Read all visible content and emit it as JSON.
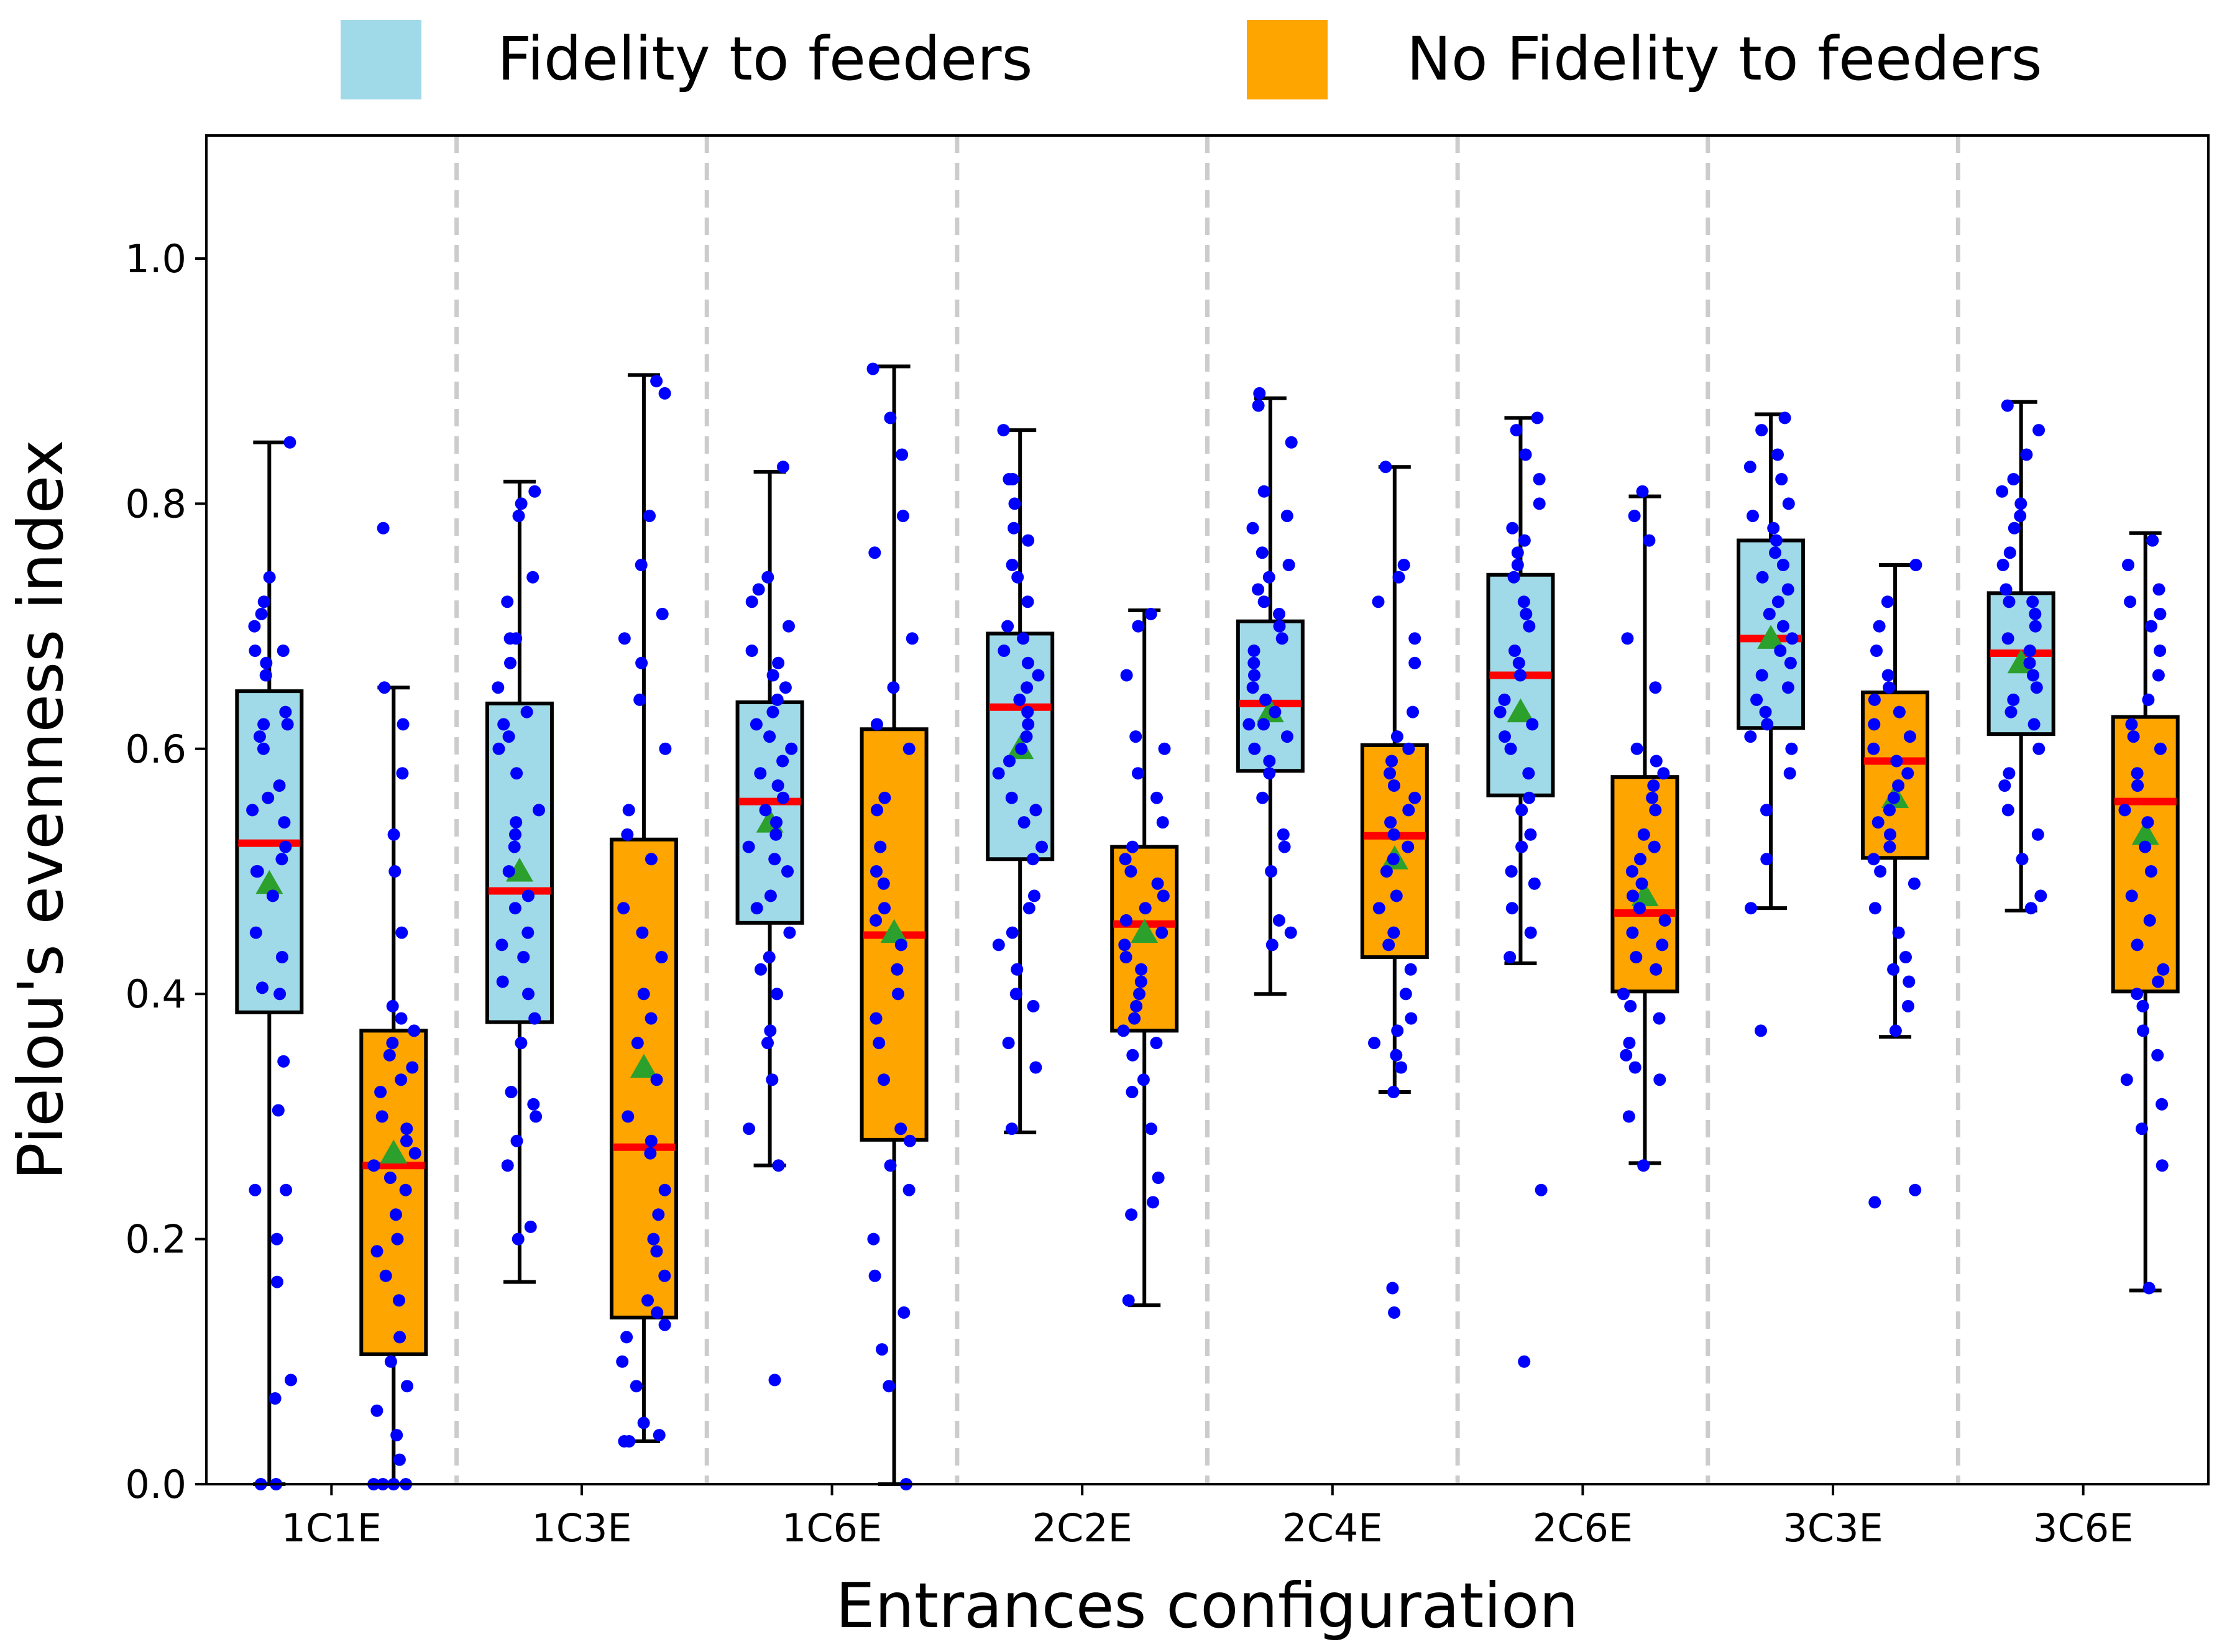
{
  "chart_data": {
    "type": "boxplot",
    "xlabel": "Entrances configuration",
    "ylabel": "Pielou's evenness index",
    "ylim": [
      0,
      1.1
    ],
    "yticks": [
      "0.0",
      "0.2",
      "0.4",
      "0.6",
      "0.8",
      "1.0"
    ],
    "categories": [
      "1C1E",
      "1C3E",
      "1C6E",
      "2C2E",
      "2C4E",
      "2C6E",
      "3C3E",
      "3C6E"
    ],
    "legend": {
      "position": "top-center"
    },
    "colors": {
      "fidelity": "#a0dae8",
      "no_fidelity": "#ffa500",
      "points": "#0000ff",
      "median": "#ff0000",
      "mean": "#2ca02c",
      "separator": "#cccccc"
    },
    "series": [
      {
        "name": "Fidelity to feeders",
        "key": "fidelity",
        "boxes": [
          {
            "whisker_low": 0.0,
            "q1": 0.385,
            "median": 0.523,
            "q3": 0.647,
            "whisker_high": 0.85,
            "mean": 0.49,
            "points": [
              0.0,
              0.0,
              0.07,
              0.085,
              0.165,
              0.2,
              0.24,
              0.24,
              0.305,
              0.345,
              0.4,
              0.405,
              0.43,
              0.45,
              0.48,
              0.5,
              0.5,
              0.51,
              0.52,
              0.54,
              0.55,
              0.56,
              0.57,
              0.6,
              0.61,
              0.62,
              0.62,
              0.63,
              0.66,
              0.67,
              0.68,
              0.68,
              0.7,
              0.71,
              0.72,
              0.74,
              0.85
            ]
          },
          {
            "whisker_low": 0.165,
            "q1": 0.377,
            "median": 0.484,
            "q3": 0.637,
            "whisker_high": 0.818,
            "mean": 0.5,
            "points": [
              0.2,
              0.21,
              0.26,
              0.28,
              0.3,
              0.31,
              0.32,
              0.36,
              0.38,
              0.4,
              0.41,
              0.43,
              0.44,
              0.45,
              0.47,
              0.48,
              0.5,
              0.52,
              0.53,
              0.54,
              0.55,
              0.58,
              0.6,
              0.61,
              0.62,
              0.63,
              0.65,
              0.67,
              0.69,
              0.69,
              0.72,
              0.74,
              0.79,
              0.8,
              0.81
            ]
          },
          {
            "whisker_low": 0.26,
            "q1": 0.458,
            "median": 0.557,
            "q3": 0.638,
            "whisker_high": 0.826,
            "mean": 0.54,
            "points": [
              0.085,
              0.26,
              0.29,
              0.33,
              0.36,
              0.37,
              0.4,
              0.42,
              0.43,
              0.45,
              0.47,
              0.48,
              0.5,
              0.51,
              0.52,
              0.53,
              0.54,
              0.55,
              0.56,
              0.57,
              0.58,
              0.59,
              0.6,
              0.61,
              0.62,
              0.63,
              0.64,
              0.65,
              0.66,
              0.67,
              0.68,
              0.7,
              0.72,
              0.73,
              0.74,
              0.83
            ]
          },
          {
            "whisker_low": 0.287,
            "q1": 0.51,
            "median": 0.634,
            "q3": 0.694,
            "whisker_high": 0.86,
            "mean": 0.6,
            "points": [
              0.29,
              0.34,
              0.36,
              0.39,
              0.4,
              0.42,
              0.44,
              0.45,
              0.47,
              0.48,
              0.51,
              0.52,
              0.54,
              0.55,
              0.56,
              0.58,
              0.59,
              0.6,
              0.61,
              0.62,
              0.63,
              0.64,
              0.65,
              0.66,
              0.67,
              0.68,
              0.69,
              0.7,
              0.72,
              0.74,
              0.75,
              0.77,
              0.78,
              0.8,
              0.82,
              0.82,
              0.86
            ]
          },
          {
            "whisker_low": 0.4,
            "q1": 0.582,
            "median": 0.637,
            "q3": 0.704,
            "whisker_high": 0.886,
            "mean": 0.63,
            "points": [
              0.44,
              0.45,
              0.46,
              0.5,
              0.52,
              0.53,
              0.56,
              0.58,
              0.59,
              0.6,
              0.61,
              0.62,
              0.62,
              0.63,
              0.64,
              0.65,
              0.66,
              0.67,
              0.68,
              0.69,
              0.7,
              0.71,
              0.72,
              0.73,
              0.74,
              0.75,
              0.76,
              0.78,
              0.79,
              0.81,
              0.85,
              0.88,
              0.89
            ]
          },
          {
            "whisker_low": 0.425,
            "q1": 0.562,
            "median": 0.66,
            "q3": 0.742,
            "whisker_high": 0.87,
            "mean": 0.63,
            "points": [
              0.1,
              0.24,
              0.43,
              0.45,
              0.47,
              0.49,
              0.5,
              0.52,
              0.53,
              0.55,
              0.56,
              0.58,
              0.6,
              0.61,
              0.62,
              0.63,
              0.64,
              0.66,
              0.67,
              0.68,
              0.7,
              0.71,
              0.72,
              0.74,
              0.75,
              0.76,
              0.77,
              0.78,
              0.8,
              0.82,
              0.84,
              0.86,
              0.87
            ]
          },
          {
            "whisker_low": 0.47,
            "q1": 0.617,
            "median": 0.69,
            "q3": 0.77,
            "whisker_high": 0.873,
            "mean": 0.69,
            "points": [
              0.37,
              0.47,
              0.51,
              0.55,
              0.58,
              0.6,
              0.61,
              0.62,
              0.63,
              0.64,
              0.65,
              0.66,
              0.67,
              0.68,
              0.69,
              0.7,
              0.71,
              0.72,
              0.73,
              0.74,
              0.75,
              0.76,
              0.77,
              0.78,
              0.79,
              0.8,
              0.82,
              0.83,
              0.84,
              0.86,
              0.87
            ]
          },
          {
            "whisker_low": 0.468,
            "q1": 0.612,
            "median": 0.678,
            "q3": 0.727,
            "whisker_high": 0.883,
            "mean": 0.67,
            "points": [
              0.47,
              0.48,
              0.51,
              0.53,
              0.55,
              0.57,
              0.58,
              0.6,
              0.62,
              0.63,
              0.64,
              0.65,
              0.66,
              0.67,
              0.68,
              0.69,
              0.7,
              0.71,
              0.72,
              0.72,
              0.73,
              0.75,
              0.76,
              0.78,
              0.79,
              0.8,
              0.81,
              0.82,
              0.84,
              0.86,
              0.88
            ]
          }
        ]
      },
      {
        "name": "No Fidelity to feeders",
        "key": "no_fidelity",
        "boxes": [
          {
            "whisker_low": 0.0,
            "q1": 0.106,
            "median": 0.26,
            "q3": 0.37,
            "whisker_high": 0.65,
            "mean": 0.27,
            "points": [
              0.0,
              0.0,
              0.0,
              0.0,
              0.02,
              0.04,
              0.06,
              0.08,
              0.1,
              0.12,
              0.15,
              0.17,
              0.19,
              0.2,
              0.22,
              0.24,
              0.25,
              0.26,
              0.27,
              0.28,
              0.29,
              0.3,
              0.32,
              0.33,
              0.34,
              0.35,
              0.36,
              0.37,
              0.38,
              0.39,
              0.45,
              0.5,
              0.53,
              0.58,
              0.62,
              0.65,
              0.78
            ]
          },
          {
            "whisker_low": 0.035,
            "q1": 0.136,
            "median": 0.275,
            "q3": 0.526,
            "whisker_high": 0.905,
            "mean": 0.34,
            "points": [
              0.035,
              0.035,
              0.04,
              0.05,
              0.08,
              0.1,
              0.12,
              0.13,
              0.14,
              0.15,
              0.17,
              0.19,
              0.2,
              0.22,
              0.24,
              0.27,
              0.28,
              0.3,
              0.33,
              0.36,
              0.38,
              0.4,
              0.43,
              0.45,
              0.47,
              0.51,
              0.53,
              0.55,
              0.6,
              0.64,
              0.67,
              0.69,
              0.71,
              0.75,
              0.79,
              0.89,
              0.9
            ]
          },
          {
            "whisker_low": 0.0,
            "q1": 0.281,
            "median": 0.448,
            "q3": 0.616,
            "whisker_high": 0.912,
            "mean": 0.45,
            "points": [
              0.0,
              0.08,
              0.11,
              0.14,
              0.17,
              0.2,
              0.24,
              0.26,
              0.28,
              0.29,
              0.33,
              0.36,
              0.38,
              0.4,
              0.42,
              0.44,
              0.46,
              0.47,
              0.49,
              0.5,
              0.52,
              0.55,
              0.56,
              0.6,
              0.62,
              0.65,
              0.69,
              0.76,
              0.79,
              0.84,
              0.87,
              0.91
            ]
          },
          {
            "whisker_low": 0.146,
            "q1": 0.37,
            "median": 0.457,
            "q3": 0.52,
            "whisker_high": 0.713,
            "mean": 0.45,
            "points": [
              0.15,
              0.22,
              0.23,
              0.25,
              0.29,
              0.32,
              0.33,
              0.35,
              0.36,
              0.37,
              0.38,
              0.39,
              0.4,
              0.41,
              0.42,
              0.43,
              0.44,
              0.45,
              0.46,
              0.47,
              0.48,
              0.49,
              0.5,
              0.51,
              0.52,
              0.54,
              0.56,
              0.58,
              0.6,
              0.61,
              0.66,
              0.7,
              0.71
            ]
          },
          {
            "whisker_low": 0.32,
            "q1": 0.43,
            "median": 0.529,
            "q3": 0.603,
            "whisker_high": 0.83,
            "mean": 0.51,
            "points": [
              0.14,
              0.16,
              0.32,
              0.34,
              0.35,
              0.36,
              0.37,
              0.38,
              0.4,
              0.42,
              0.44,
              0.45,
              0.47,
              0.48,
              0.5,
              0.51,
              0.52,
              0.53,
              0.54,
              0.55,
              0.56,
              0.57,
              0.58,
              0.59,
              0.6,
              0.61,
              0.63,
              0.67,
              0.69,
              0.72,
              0.74,
              0.75,
              0.83
            ]
          },
          {
            "whisker_low": 0.262,
            "q1": 0.402,
            "median": 0.466,
            "q3": 0.577,
            "whisker_high": 0.806,
            "mean": 0.48,
            "points": [
              0.26,
              0.3,
              0.33,
              0.34,
              0.35,
              0.36,
              0.38,
              0.39,
              0.4,
              0.42,
              0.43,
              0.44,
              0.45,
              0.46,
              0.47,
              0.48,
              0.49,
              0.5,
              0.51,
              0.52,
              0.53,
              0.55,
              0.56,
              0.57,
              0.58,
              0.59,
              0.6,
              0.65,
              0.69,
              0.77,
              0.79,
              0.81
            ]
          },
          {
            "whisker_low": 0.365,
            "q1": 0.511,
            "median": 0.59,
            "q3": 0.646,
            "whisker_high": 0.75,
            "mean": 0.56,
            "points": [
              0.23,
              0.24,
              0.37,
              0.39,
              0.41,
              0.42,
              0.43,
              0.45,
              0.47,
              0.49,
              0.5,
              0.51,
              0.52,
              0.53,
              0.54,
              0.55,
              0.56,
              0.57,
              0.58,
              0.59,
              0.6,
              0.61,
              0.62,
              0.63,
              0.64,
              0.65,
              0.66,
              0.68,
              0.7,
              0.72,
              0.75
            ]
          },
          {
            "whisker_low": 0.158,
            "q1": 0.402,
            "median": 0.557,
            "q3": 0.626,
            "whisker_high": 0.776,
            "mean": 0.53,
            "points": [
              0.16,
              0.26,
              0.29,
              0.31,
              0.33,
              0.35,
              0.37,
              0.39,
              0.4,
              0.41,
              0.42,
              0.44,
              0.46,
              0.48,
              0.5,
              0.52,
              0.54,
              0.55,
              0.57,
              0.58,
              0.6,
              0.61,
              0.62,
              0.64,
              0.66,
              0.68,
              0.7,
              0.71,
              0.72,
              0.73,
              0.75,
              0.77
            ]
          }
        ]
      }
    ]
  }
}
